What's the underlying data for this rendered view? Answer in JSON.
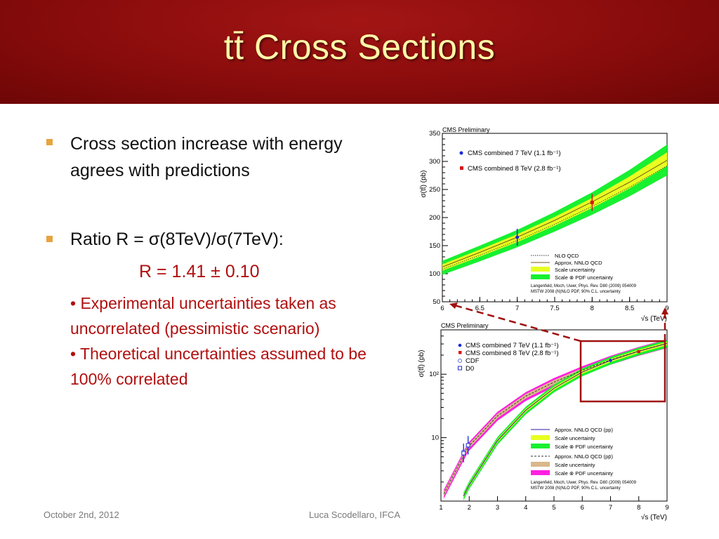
{
  "slide": {
    "title": "tt̄ Cross Sections",
    "bullets": [
      {
        "line1": "Cross section increase with energy",
        "line2": "agrees with predictions"
      },
      {
        "text": "Ratio R = σ(8TeV)/σ(7TeV):"
      }
    ],
    "result": "R = 1.41 ± 0.10",
    "notes": [
      "• Experimental uncertainties taken as uncorrelated (pessimistic scenario)",
      "• Theoretical uncertainties assumed to be 100% correlated"
    ],
    "footer_left": "October 2nd, 2012",
    "footer_center": "Luca Scodellaro, IFCA"
  },
  "colors": {
    "accent_title": "#fff9a8",
    "header_bg": "#8a0c0c",
    "bullet_marker": "#e8a33c",
    "highlight": "#b10f0f"
  },
  "chart_data": [
    {
      "type": "line",
      "title": "CMS Preliminary",
      "xlabel": "√s (TeV)",
      "ylabel": "σ(tt̄) (pb)",
      "xlim": [
        6,
        9
      ],
      "ylim": [
        50,
        350
      ],
      "xticks": [
        "6",
        "6.5",
        "7",
        "7.5",
        "8",
        "8.5",
        "9"
      ],
      "yticks": [
        "50",
        "100",
        "150",
        "200",
        "250",
        "300",
        "350"
      ],
      "legend_top": [
        "CMS combined 7 TeV (1.1 fb⁻¹)",
        "CMS combined 8 TeV (2.8 fb⁻¹)"
      ],
      "legend_bottom": [
        "NLO QCD",
        "Approx. NNLO QCD",
        "Scale uncertainty",
        "Scale ⊗ PDF uncertainty"
      ],
      "reference": [
        "Langenfeld, Moch, Uwer, Phys. Rev. D80 (2009) 054009",
        "MSTW 2008 (N)NLO PDF, 90% C.L. uncertainty"
      ],
      "series": [
        {
          "name": "Approx. NNLO QCD",
          "x": [
            6,
            6.5,
            7,
            7.5,
            8,
            8.5,
            9
          ],
          "y": [
            112,
            138,
            165,
            195,
            228,
            263,
            302
          ]
        },
        {
          "name": "NLO QCD",
          "x": [
            6,
            6.5,
            7,
            7.5,
            8,
            8.5,
            9
          ],
          "y": [
            108,
            133,
            159,
            188,
            220,
            254,
            292
          ]
        }
      ],
      "band_scale_pdf": {
        "x": [
          6,
          6.5,
          7,
          7.5,
          8,
          8.5,
          9
        ],
        "low": [
          98,
          122,
          147,
          175,
          205,
          238,
          275
        ],
        "high": [
          123,
          150,
          178,
          210,
          245,
          285,
          330
        ]
      },
      "points": [
        {
          "name": "CMS combined 7 TeV (1.1 fb⁻¹)",
          "x": 7,
          "y": 165,
          "err": 15,
          "color": "#1b2bd6"
        },
        {
          "name": "CMS combined 8 TeV (2.8 fb⁻¹)",
          "x": 8,
          "y": 227,
          "err": 15,
          "color": "#d81414"
        }
      ]
    },
    {
      "type": "line",
      "title": "CMS Preliminary",
      "xlabel": "√s (TeV)",
      "ylabel": "σ(tt̄) (pb)",
      "xlim": [
        1,
        9
      ],
      "ylim": [
        1,
        500
      ],
      "log_y": true,
      "xticks": [
        "1",
        "2",
        "3",
        "4",
        "5",
        "6",
        "7",
        "8",
        "9"
      ],
      "yticks": [
        "10",
        "10²"
      ],
      "legend_top": [
        "CMS combined 7 TeV (1.1 fb⁻¹)",
        "CMS combined 8 TeV (2.8 fb⁻¹)",
        "CDF",
        "D0"
      ],
      "legend_bottom": [
        "Approx. NNLO QCD (pp)",
        "Scale uncertainty",
        "Scale ⊗ PDF uncertainty",
        "Approx. NNLO QCD (pp̄)",
        "Scale uncertainty",
        "Scale ⊗ PDF uncertainty"
      ],
      "reference": [
        "Langenfeld, Moch, Uwer, Phys. Rev. D80 (2009) 054009",
        "MSTW 2008 (N)NLO PDF, 90% C.L. uncertainty"
      ],
      "series": [
        {
          "name": "Approx. NNLO QCD (pp)",
          "x": [
            1.8,
            2,
            3,
            4,
            5,
            6,
            7,
            8,
            9
          ],
          "y": [
            1.2,
            1.8,
            9,
            27,
            60,
            108,
            165,
            230,
            305
          ]
        },
        {
          "name": "Approx. NNLO QCD (pp̄)",
          "x": [
            1.1,
            1.96,
            3,
            4,
            5,
            6,
            7,
            8,
            9
          ],
          "y": [
            1.3,
            7.1,
            22,
            45,
            75,
            115,
            168,
            232,
            307
          ]
        }
      ],
      "points": [
        {
          "name": "CMS combined 7 TeV (1.1 fb⁻¹)",
          "x": 7,
          "y": 165,
          "color": "#1b2bd6"
        },
        {
          "name": "CMS combined 8 TeV (2.8 fb⁻¹)",
          "x": 8,
          "y": 227,
          "color": "#d81414"
        },
        {
          "name": "CDF",
          "x": 1.8,
          "y": 6.0,
          "color": "#5a6bd8"
        },
        {
          "name": "D0",
          "x": 1.8,
          "y": 5.7,
          "color": "#1b2bd6"
        },
        {
          "name": "CDF",
          "x": 1.96,
          "y": 7.5,
          "color": "#5a6bd8"
        },
        {
          "name": "D0",
          "x": 1.96,
          "y": 7.6,
          "color": "#1b2bd6"
        }
      ]
    }
  ]
}
